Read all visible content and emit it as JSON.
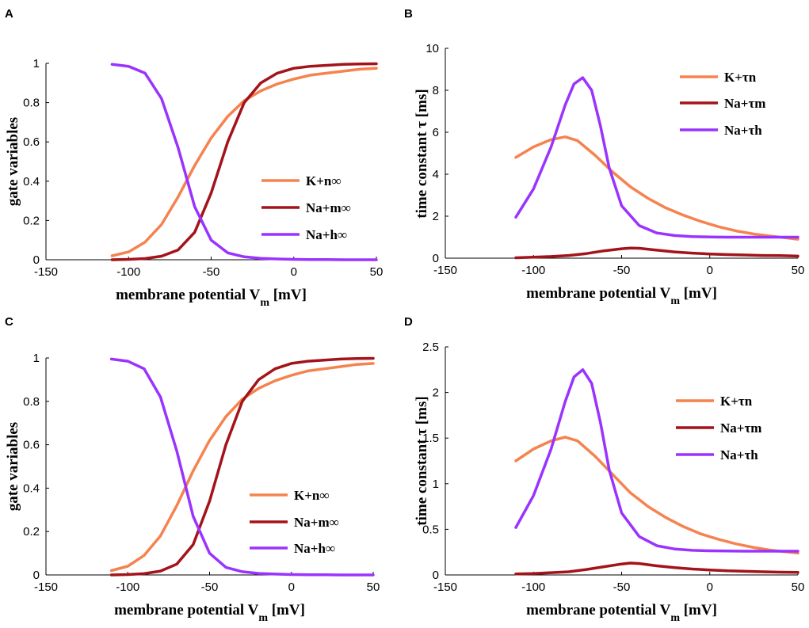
{
  "figure": {
    "colors": {
      "K": "#f5834f",
      "Na_m": "#a3131a",
      "Na_h": "#9a33ff"
    }
  },
  "chart_data": [
    {
      "panel": "A",
      "type": "line",
      "xlabel_main": "membrane potential V",
      "xlabel_sub": "m",
      "xlabel_unit": " [mV]",
      "ylabel": "gate variables",
      "xlim": [
        -150,
        50
      ],
      "ylim": [
        0,
        1
      ],
      "xticks": [
        "-150",
        "-100",
        "-50",
        "0",
        "50"
      ],
      "yticks": [
        "0",
        "0.2",
        "0.4",
        "0.6",
        "0.8",
        "1"
      ],
      "legend": [
        "K+n∞",
        "Na+m∞",
        "Na+h∞"
      ],
      "series": [
        {
          "name": "K+ n∞",
          "x": [
            -110,
            -100,
            -90,
            -80,
            -70,
            -60,
            -50,
            -40,
            -30,
            -20,
            -10,
            0,
            10,
            20,
            30,
            40,
            50
          ],
          "y": [
            0.02,
            0.04,
            0.09,
            0.18,
            0.32,
            0.48,
            0.62,
            0.73,
            0.81,
            0.86,
            0.895,
            0.92,
            0.94,
            0.95,
            0.96,
            0.97,
            0.975
          ]
        },
        {
          "name": "Na+ m∞",
          "x": [
            -110,
            -100,
            -90,
            -80,
            -70,
            -60,
            -50,
            -40,
            -30,
            -20,
            -10,
            0,
            10,
            20,
            30,
            40,
            50
          ],
          "y": [
            0.0,
            0.002,
            0.006,
            0.018,
            0.05,
            0.14,
            0.34,
            0.6,
            0.8,
            0.9,
            0.95,
            0.975,
            0.985,
            0.99,
            0.995,
            0.997,
            0.998
          ]
        },
        {
          "name": "Na+ h∞",
          "x": [
            -110,
            -100,
            -90,
            -80,
            -70,
            -60,
            -50,
            -40,
            -30,
            -20,
            -10,
            0,
            10,
            20,
            30,
            40,
            50
          ],
          "y": [
            0.995,
            0.985,
            0.95,
            0.82,
            0.57,
            0.27,
            0.1,
            0.035,
            0.015,
            0.007,
            0.004,
            0.002,
            0.001,
            0.001,
            0.0,
            0.0,
            0.0
          ]
        }
      ]
    },
    {
      "panel": "B",
      "type": "line",
      "xlabel_main": "membrane potential V",
      "xlabel_sub": "m",
      "xlabel_unit": " [mV]",
      "ylabel": "time constant τ [ms]",
      "xlim": [
        -150,
        50
      ],
      "ylim": [
        0,
        10
      ],
      "xticks": [
        "-150",
        "-100",
        "-50",
        "0",
        "50"
      ],
      "yticks": [
        "0",
        "2",
        "4",
        "6",
        "8",
        "10"
      ],
      "legend": [
        "K+τn",
        "Na+τm",
        "Na+τh"
      ],
      "series": [
        {
          "name": "K+ τn",
          "x": [
            -110,
            -100,
            -90,
            -82,
            -75,
            -65,
            -55,
            -45,
            -35,
            -25,
            -15,
            -5,
            5,
            15,
            25,
            35,
            50
          ],
          "y": [
            4.8,
            5.3,
            5.65,
            5.78,
            5.6,
            4.9,
            4.1,
            3.4,
            2.85,
            2.4,
            2.05,
            1.75,
            1.5,
            1.3,
            1.15,
            1.05,
            0.9
          ]
        },
        {
          "name": "Na+ τm",
          "x": [
            -110,
            -100,
            -90,
            -80,
            -70,
            -60,
            -50,
            -45,
            -40,
            -30,
            -20,
            -10,
            0,
            10,
            20,
            30,
            40,
            50
          ],
          "y": [
            0.02,
            0.05,
            0.08,
            0.13,
            0.22,
            0.35,
            0.45,
            0.48,
            0.47,
            0.38,
            0.3,
            0.24,
            0.2,
            0.17,
            0.15,
            0.13,
            0.12,
            0.1
          ]
        },
        {
          "name": "Na+ τh",
          "x": [
            -110,
            -100,
            -90,
            -82,
            -77,
            -72,
            -67,
            -62,
            -57,
            -50,
            -40,
            -30,
            -20,
            -10,
            0,
            10,
            20,
            30,
            50
          ],
          "y": [
            1.95,
            3.3,
            5.3,
            7.3,
            8.3,
            8.6,
            8.0,
            6.3,
            4.3,
            2.5,
            1.55,
            1.2,
            1.08,
            1.03,
            1.01,
            1.0,
            1.0,
            1.0,
            1.0
          ]
        }
      ]
    },
    {
      "panel": "C",
      "type": "line",
      "xlabel_main": "membrane potential V",
      "xlabel_sub": "m",
      "xlabel_unit": " [mV]",
      "ylabel": "gate variables",
      "xlim": [
        -150,
        50
      ],
      "ylim": [
        0,
        1
      ],
      "xticks": [
        "-150",
        "-100",
        "-50",
        "0",
        "50"
      ],
      "yticks": [
        "0",
        "0.2",
        "0.4",
        "0.6",
        "0.8",
        "1"
      ],
      "legend": [
        "K+n∞",
        "Na+m∞",
        "Na+h∞"
      ],
      "series": [
        {
          "name": "K+ n∞",
          "x": [
            -110,
            -100,
            -90,
            -80,
            -70,
            -60,
            -50,
            -40,
            -30,
            -20,
            -10,
            0,
            10,
            20,
            30,
            40,
            50
          ],
          "y": [
            0.02,
            0.04,
            0.09,
            0.18,
            0.32,
            0.48,
            0.62,
            0.73,
            0.81,
            0.86,
            0.895,
            0.92,
            0.94,
            0.95,
            0.96,
            0.97,
            0.975
          ]
        },
        {
          "name": "Na+ m∞",
          "x": [
            -110,
            -100,
            -90,
            -80,
            -70,
            -60,
            -50,
            -40,
            -30,
            -20,
            -10,
            0,
            10,
            20,
            30,
            40,
            50
          ],
          "y": [
            0.0,
            0.002,
            0.006,
            0.018,
            0.05,
            0.14,
            0.34,
            0.6,
            0.8,
            0.9,
            0.95,
            0.975,
            0.985,
            0.99,
            0.995,
            0.997,
            0.998
          ]
        },
        {
          "name": "Na+ h∞",
          "x": [
            -110,
            -100,
            -90,
            -80,
            -70,
            -60,
            -50,
            -40,
            -30,
            -20,
            -10,
            0,
            10,
            20,
            30,
            40,
            50
          ],
          "y": [
            0.995,
            0.985,
            0.95,
            0.82,
            0.57,
            0.27,
            0.1,
            0.035,
            0.015,
            0.007,
            0.004,
            0.002,
            0.001,
            0.001,
            0.0,
            0.0,
            0.0
          ]
        }
      ]
    },
    {
      "panel": "D",
      "type": "line",
      "xlabel_main": "membrane potential V",
      "xlabel_sub": "m",
      "xlabel_unit": " [mV]",
      "ylabel": "time constant τ [ms]",
      "xlim": [
        -150,
        50
      ],
      "ylim": [
        0,
        2.5
      ],
      "xticks": [
        "-150",
        "-100",
        "-50",
        "0",
        "50"
      ],
      "yticks": [
        "0",
        "0.5",
        "1",
        "1.5",
        "2",
        "2.5"
      ],
      "legend": [
        "K+τn",
        "Na+τm",
        "Na+τh"
      ],
      "series": [
        {
          "name": "K+ τn",
          "x": [
            -110,
            -100,
            -90,
            -82,
            -75,
            -65,
            -55,
            -45,
            -35,
            -25,
            -15,
            -5,
            5,
            15,
            25,
            35,
            50
          ],
          "y": [
            1.25,
            1.38,
            1.47,
            1.51,
            1.47,
            1.3,
            1.1,
            0.9,
            0.75,
            0.63,
            0.53,
            0.45,
            0.39,
            0.34,
            0.3,
            0.27,
            0.24
          ]
        },
        {
          "name": "Na+ τm",
          "x": [
            -110,
            -100,
            -90,
            -80,
            -70,
            -60,
            -50,
            -45,
            -40,
            -30,
            -20,
            -10,
            0,
            10,
            20,
            30,
            40,
            50
          ],
          "y": [
            0.01,
            0.015,
            0.025,
            0.035,
            0.06,
            0.09,
            0.12,
            0.13,
            0.125,
            0.1,
            0.08,
            0.065,
            0.055,
            0.045,
            0.04,
            0.035,
            0.03,
            0.028
          ]
        },
        {
          "name": "Na+ τh",
          "x": [
            -110,
            -100,
            -90,
            -82,
            -77,
            -72,
            -67,
            -62,
            -57,
            -50,
            -40,
            -30,
            -20,
            -10,
            0,
            10,
            20,
            30,
            50
          ],
          "y": [
            0.52,
            0.87,
            1.38,
            1.9,
            2.17,
            2.25,
            2.1,
            1.67,
            1.15,
            0.68,
            0.42,
            0.32,
            0.285,
            0.27,
            0.265,
            0.262,
            0.26,
            0.26,
            0.26
          ]
        }
      ]
    }
  ]
}
